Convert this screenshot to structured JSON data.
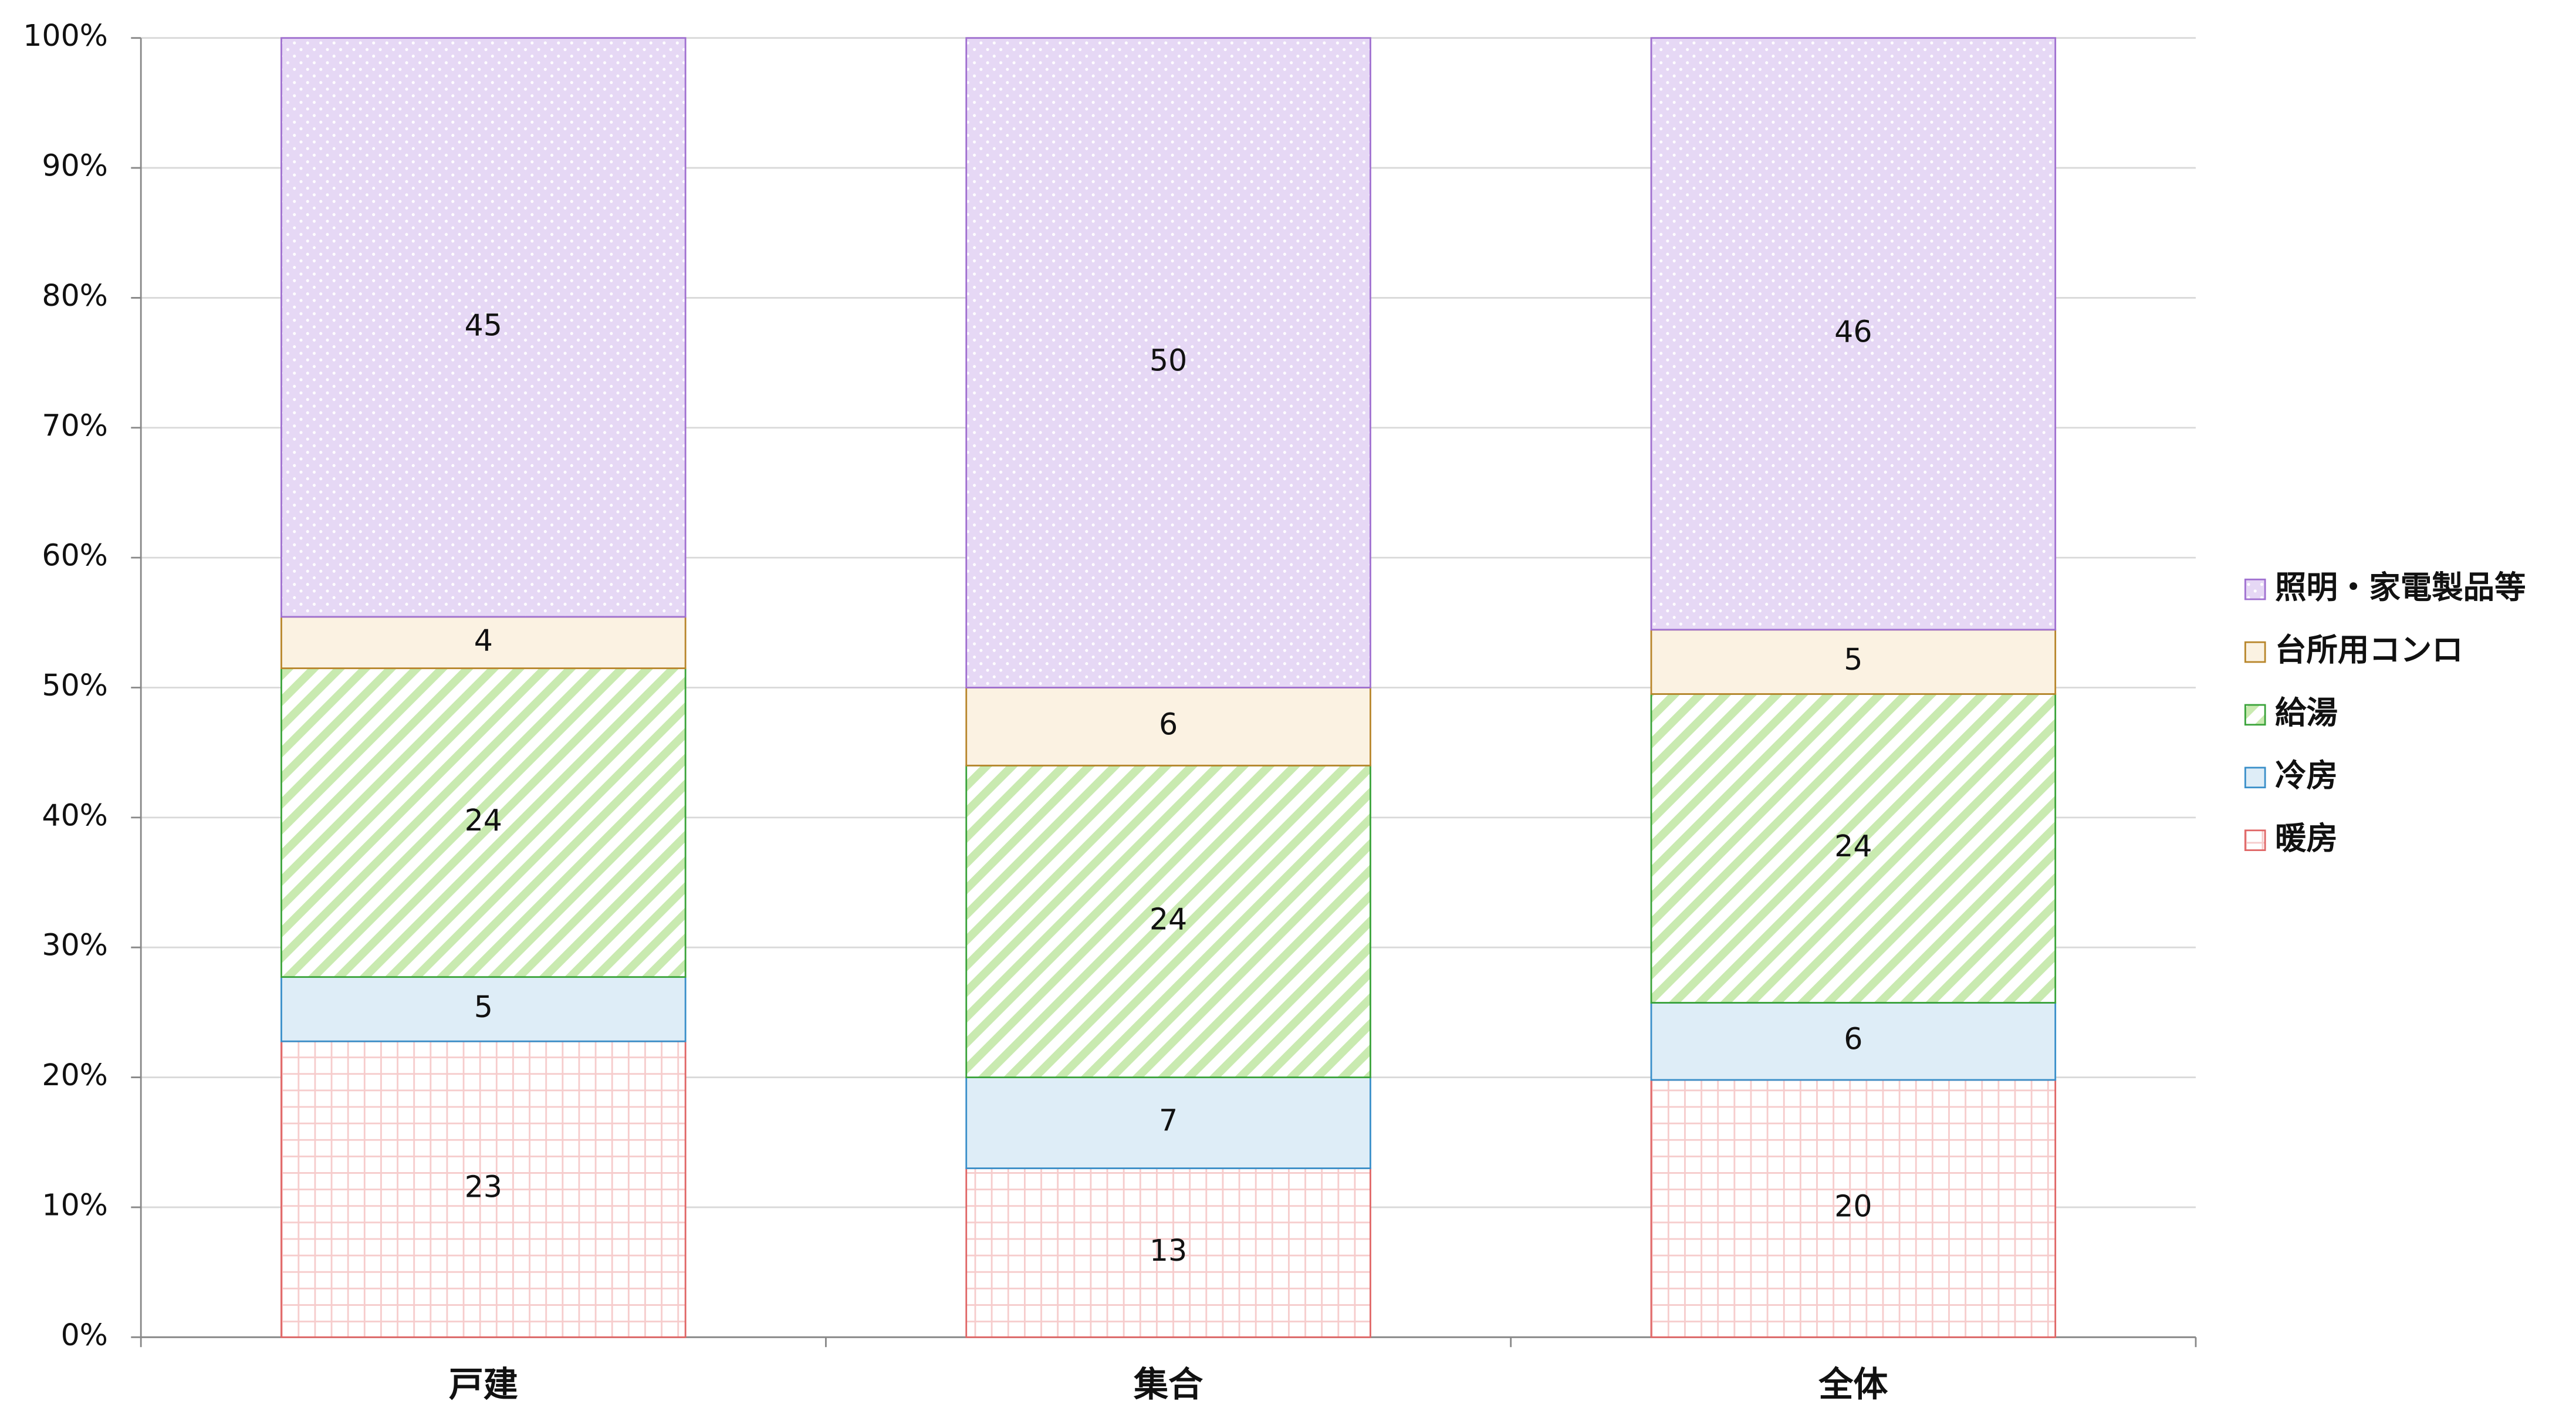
{
  "chart_data": {
    "type": "stacked_bar_100",
    "categories": [
      "戸建",
      "集合",
      "全体"
    ],
    "series": [
      {
        "name": "暖房",
        "color": "#e06666",
        "values": [
          23,
          13,
          20
        ]
      },
      {
        "name": "冷房",
        "color": "#3a8fc9",
        "values": [
          5,
          7,
          6
        ]
      },
      {
        "name": "給湯",
        "color": "#3aa33a",
        "values": [
          24,
          24,
          24
        ]
      },
      {
        "name": "台所用コンロ",
        "color": "#b8862b",
        "values": [
          4,
          6,
          5
        ]
      },
      {
        "name": "照明・家電製品等",
        "color": "#a070d0",
        "values": [
          45,
          50,
          46
        ]
      }
    ],
    "ylim": [
      0,
      100
    ],
    "yticks": [
      {
        "value": 0,
        "label": "0%"
      },
      {
        "value": 10,
        "label": "10%"
      },
      {
        "value": 20,
        "label": "20%"
      },
      {
        "value": 30,
        "label": "30%"
      },
      {
        "value": 40,
        "label": "40%"
      },
      {
        "value": 50,
        "label": "50%"
      },
      {
        "value": 60,
        "label": "60%"
      },
      {
        "value": 70,
        "label": "70%"
      },
      {
        "value": 80,
        "label": "80%"
      },
      {
        "value": 90,
        "label": "90%"
      },
      {
        "value": 100,
        "label": "100%"
      }
    ],
    "grid": true,
    "legend": "right"
  }
}
